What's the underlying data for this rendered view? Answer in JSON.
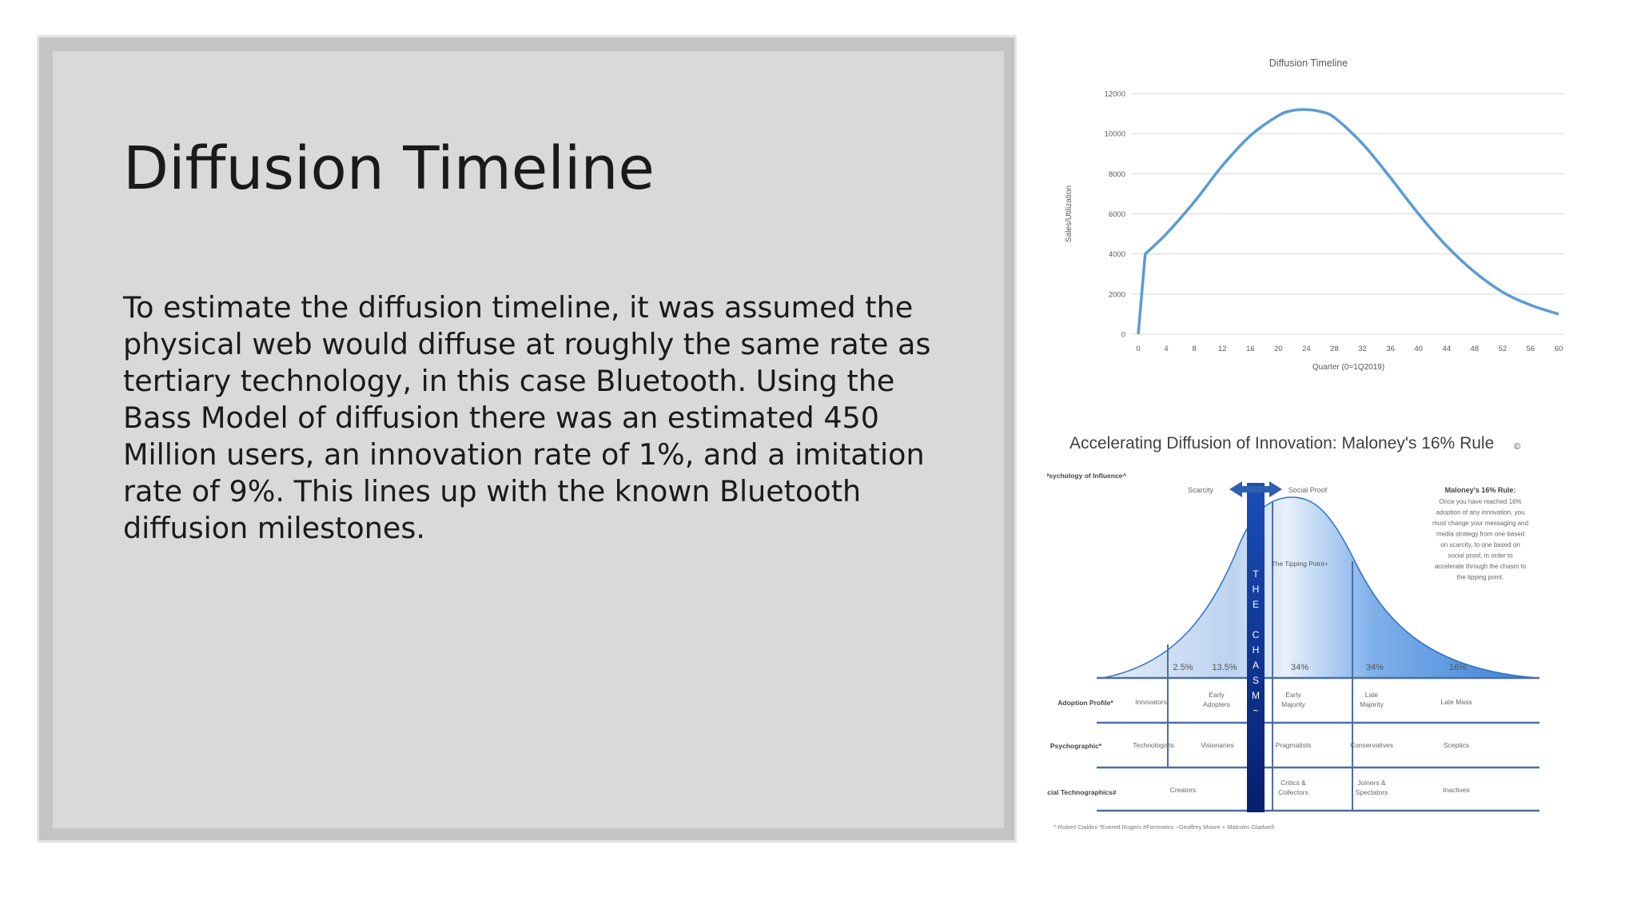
{
  "slide": {
    "title": "Diffusion Timeline",
    "body": "To estimate the diffusion timeline, it was assumed the physical web would diffuse at roughly the same rate as tertiary technology, in this case Bluetooth. Using the Bass Model of diffusion there was an estimated 450 Million users, an innovation rate of 1%, and a imitation rate of 9%. This lines up with the known Bluetooth diffusion milestones."
  },
  "chart_data": {
    "type": "line",
    "title": "Diffusion Timeline",
    "xlabel": "Quarter (0=1Q2019)",
    "ylabel": "Sales/Utilization",
    "xlim": [
      0,
      60
    ],
    "ylim": [
      0,
      12000
    ],
    "xticks": [
      "0",
      "4",
      "8",
      "12",
      "16",
      "20",
      "24",
      "28",
      "32",
      "36",
      "40",
      "44",
      "48",
      "52",
      "56",
      "60"
    ],
    "yticks": [
      "0",
      "2000",
      "4000",
      "6000",
      "8000",
      "10000",
      "12000"
    ],
    "grid": true,
    "color": "#5b9bd5",
    "x": [
      0,
      1,
      4,
      8,
      12,
      16,
      20,
      22,
      24,
      26,
      28,
      32,
      36,
      40,
      44,
      48,
      52,
      56,
      60
    ],
    "y": [
      0,
      4000,
      5000,
      6600,
      8400,
      9900,
      10900,
      11150,
      11200,
      11100,
      10800,
      9500,
      7800,
      6000,
      4400,
      3100,
      2100,
      1450,
      1000
    ]
  },
  "diagram": {
    "title": "Accelerating Diffusion of Innovation: Maloney's 16% Rule",
    "title_mark": "©",
    "row_labels": {
      "psychology": "Psychology of Influence^",
      "adoption": "Adoption Profile*",
      "psychographic": "Psychographic*",
      "social": "Social Technographics#"
    },
    "scarcity": "Scarcity",
    "social_proof": "Social Proof",
    "tipping_point": "The Tipping Point+",
    "chasm": [
      "T",
      "H",
      "E",
      "",
      "C",
      "H",
      "A",
      "S",
      "M",
      "~"
    ],
    "rule_title": "Maloney's 16% Rule:",
    "rule_text": [
      "Once you have reached 16%",
      "adoption of any innovation, you",
      "must change your messaging and",
      "media strategy from one based",
      "on scarcity, to one based on",
      "social proof, in order to",
      "accelerate through the chasm to",
      "the tipping point."
    ],
    "percents": [
      "2.5%",
      "13.5%",
      "34%",
      "34%",
      "16%"
    ],
    "adoption": [
      "Innovators",
      "Early Adopters",
      "Early Majority",
      "Late Majority",
      "Late Mass"
    ],
    "psychographic": [
      "Technologists",
      "Visionaries",
      "Pragmatists",
      "Conservatives",
      "Sceptics"
    ],
    "social": [
      "Creators",
      "Critics & Collectors",
      "Joiners & Spectators",
      "Inactives"
    ],
    "footer": "^ Robert Cialdini *Everett Rogers #Forresters ~Geoffrey Moore + Malcolm Gladwell",
    "colors": {
      "curve_light": "#cfe0f5",
      "curve_dark": "#3d84d8",
      "chasm": "#0b2f8a",
      "lines": "#4a6fa5"
    }
  }
}
